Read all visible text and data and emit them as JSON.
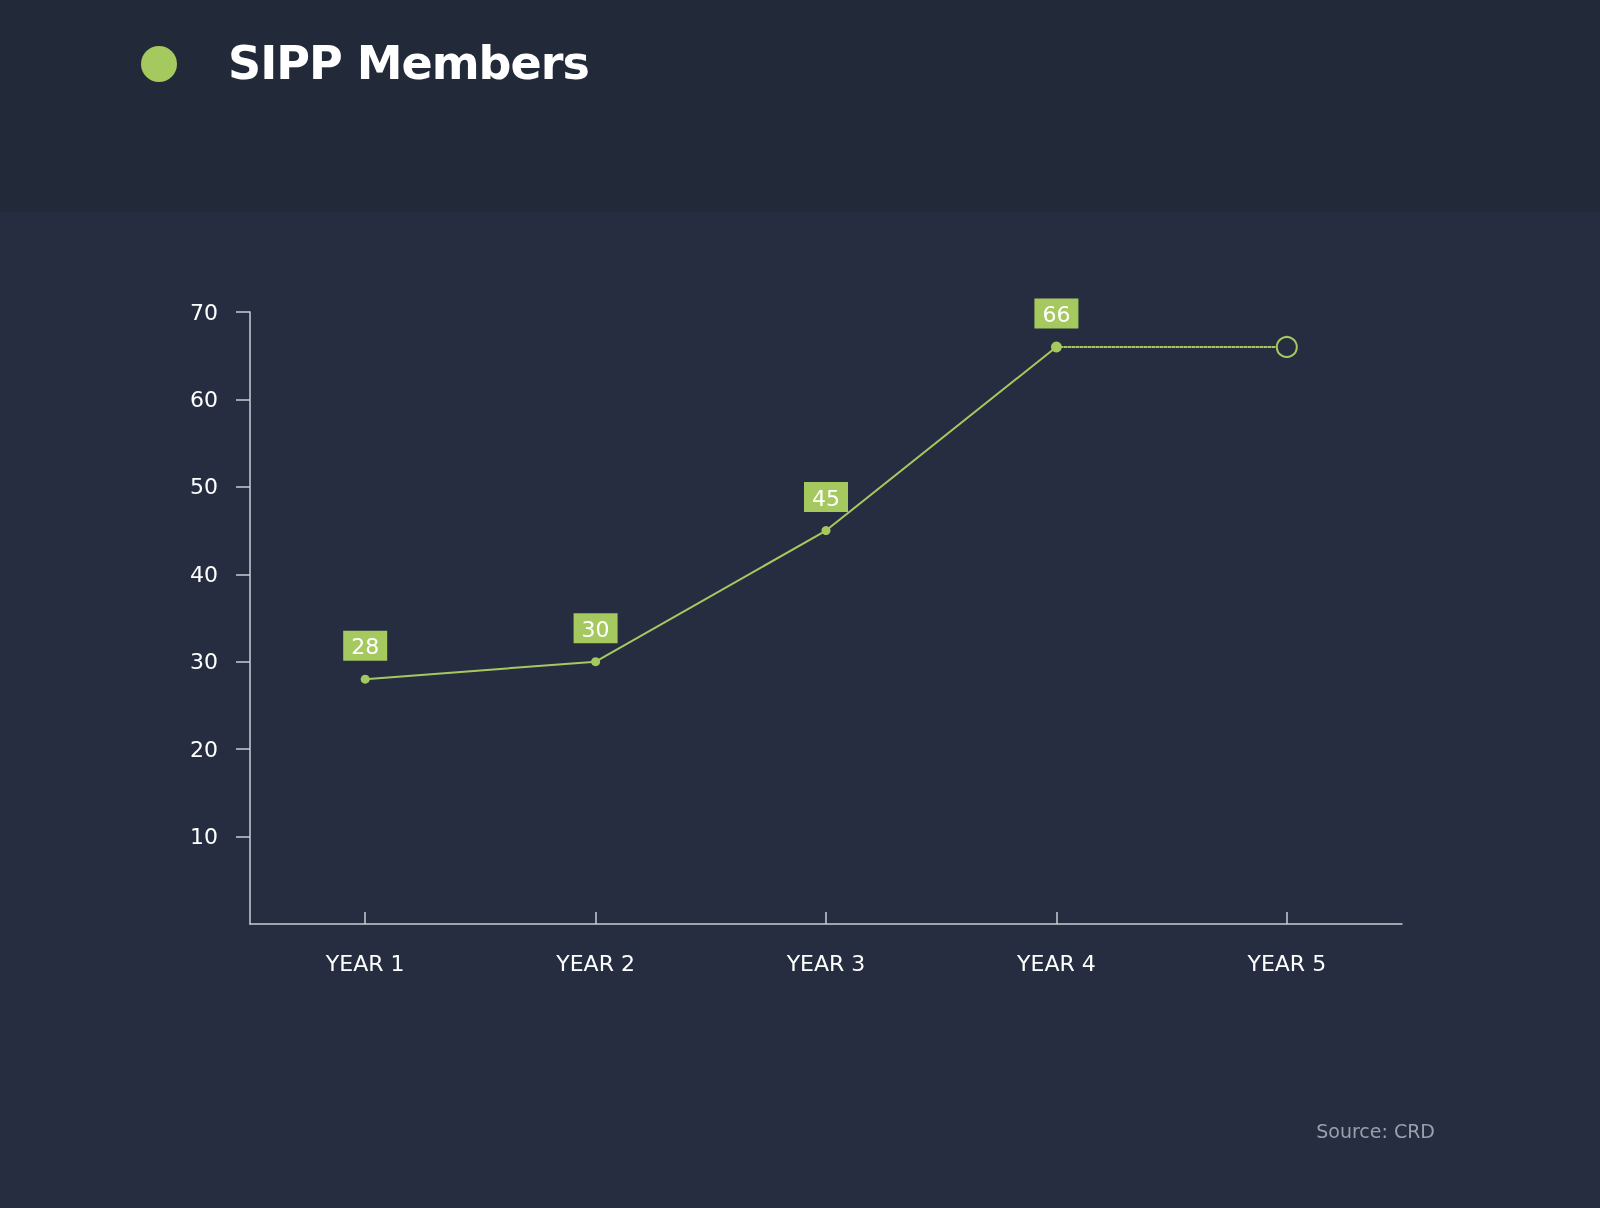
{
  "chart_data": {
    "type": "line",
    "title": "SIPP Members",
    "categories": [
      "YEAR 1",
      "YEAR 2",
      "YEAR 3",
      "YEAR 4",
      "YEAR 5"
    ],
    "series": [
      {
        "color": "#a6c95f",
        "values": [
          28,
          30,
          45,
          66,
          null
        ],
        "value_labels": [
          "28",
          "30",
          "45",
          "66",
          null
        ],
        "marker": "circle",
        "line_style": "solid"
      },
      {
        "color": "#a6c95f",
        "values": [
          null,
          null,
          null,
          66,
          66
        ],
        "marker": "circle",
        "line_style": "dotted"
      }
    ],
    "ylim": [
      0,
      70
    ],
    "yticks": [
      10,
      20,
      30,
      40,
      50,
      60,
      70
    ],
    "annotations": [
      "Source: CRD"
    ]
  }
}
